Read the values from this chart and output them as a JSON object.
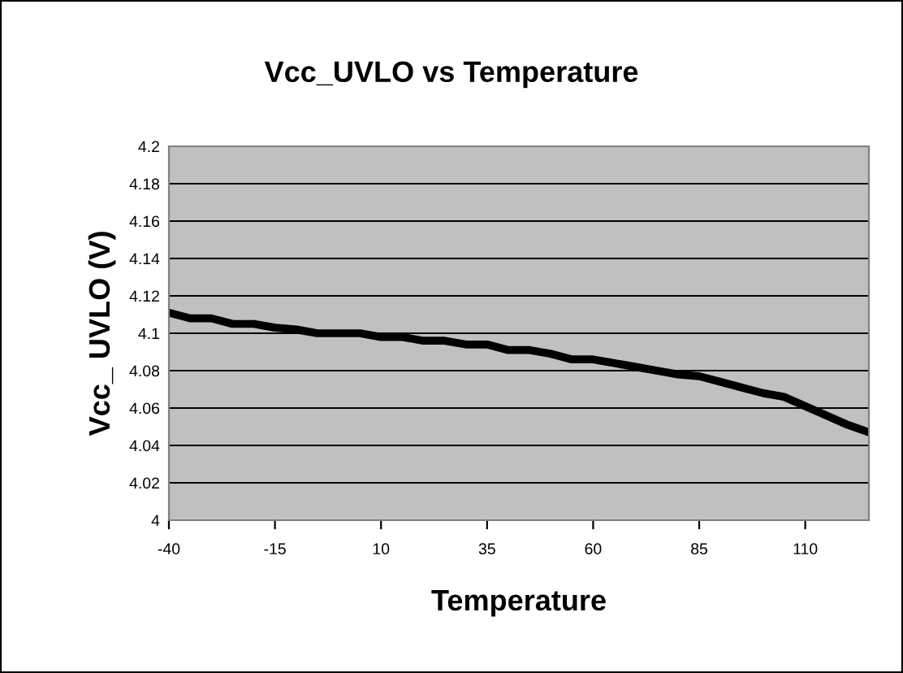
{
  "chart_data": {
    "type": "line",
    "title": "Vcc_UVLO vs Temperature",
    "xlabel": "Temperature",
    "ylabel": "Vcc_ UVLO (V)",
    "x": [
      -40,
      -35,
      -30,
      -25,
      -20,
      -15,
      -10,
      -5,
      0,
      5,
      10,
      15,
      20,
      25,
      30,
      35,
      40,
      45,
      50,
      55,
      60,
      65,
      70,
      75,
      80,
      85,
      90,
      95,
      100,
      105,
      110,
      115,
      120,
      125
    ],
    "series": [
      {
        "color": "#000000",
        "values": [
          4.111,
          4.108,
          4.108,
          4.105,
          4.105,
          4.103,
          4.102,
          4.1,
          4.1,
          4.1,
          4.098,
          4.098,
          4.096,
          4.096,
          4.094,
          4.094,
          4.091,
          4.091,
          4.089,
          4.086,
          4.086,
          4.084,
          4.082,
          4.08,
          4.078,
          4.077,
          4.074,
          4.071,
          4.068,
          4.066,
          4.061,
          4.056,
          4.051,
          4.047
        ]
      }
    ],
    "xlim": [
      -40,
      125
    ],
    "xticks": [
      -40,
      -15,
      10,
      35,
      60,
      85,
      110
    ],
    "ylim": [
      4,
      4.2
    ],
    "yticks": [
      4,
      4.02,
      4.04,
      4.06,
      4.08,
      4.1,
      4.12,
      4.14,
      4.16,
      4.18,
      4.2
    ],
    "grid": "y",
    "marker": "none",
    "line_style": "solid",
    "legend": false
  }
}
